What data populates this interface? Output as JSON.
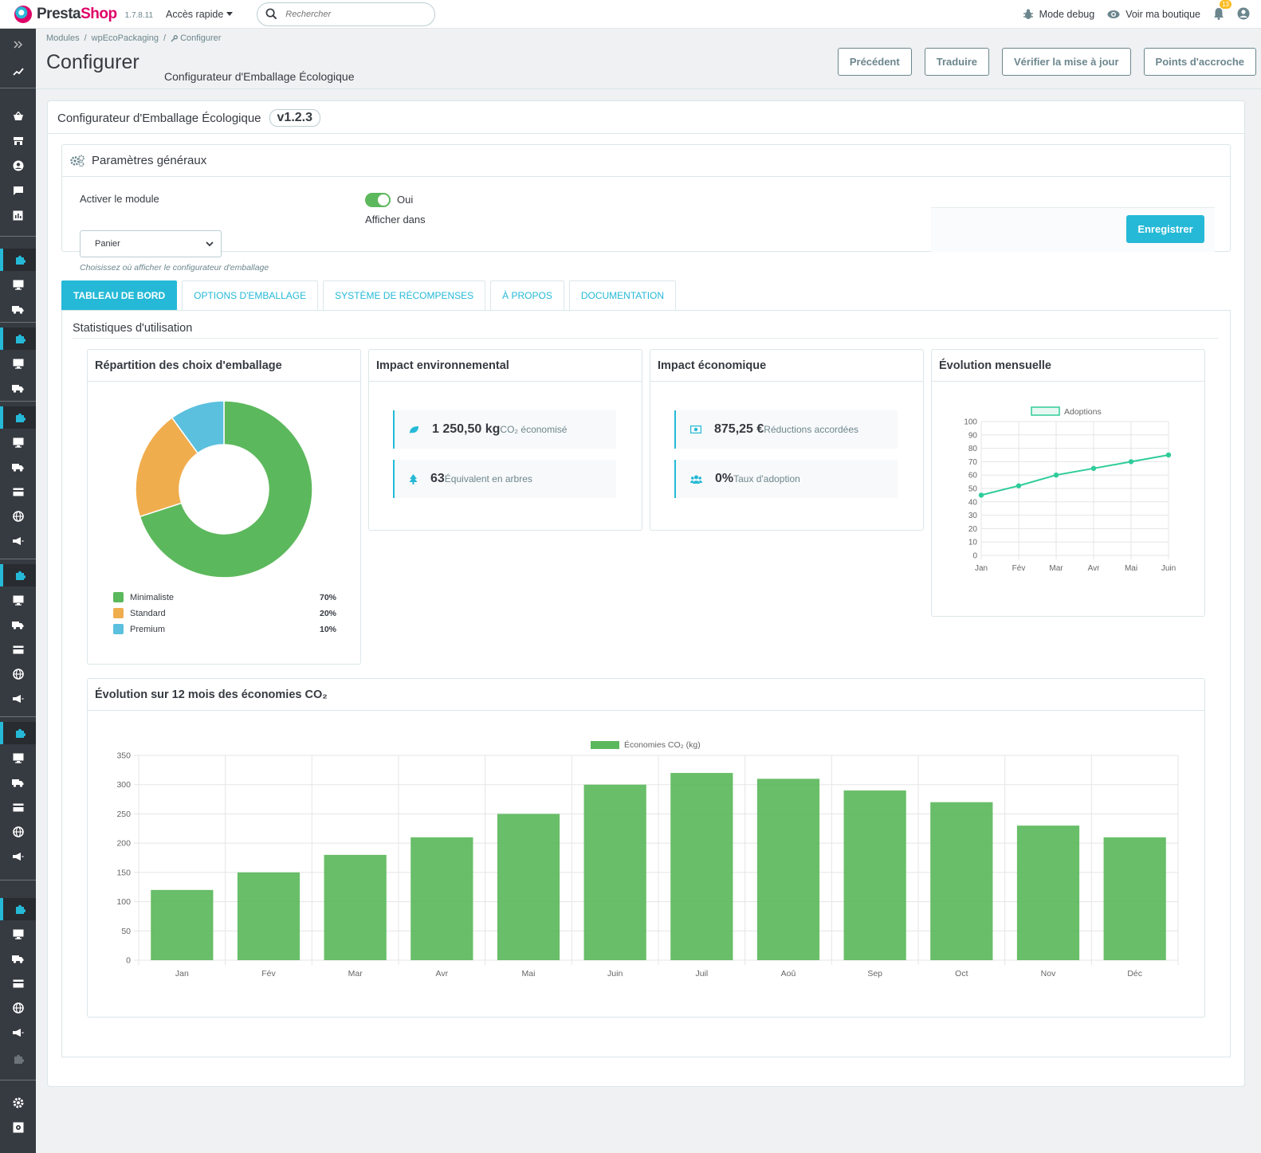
{
  "app": {
    "brand_presta": "Presta",
    "brand_shop": "Shop",
    "version": "1.7.8.11",
    "quick_access": "Accès rapide",
    "search_placeholder": "Rechercher",
    "debug_mode": "Mode debug",
    "view_shop": "Voir ma boutique",
    "notifications_count": "13"
  },
  "breadcrumb": [
    "Modules",
    "/",
    "wpEcoPackaging",
    "/",
    "Configurer"
  ],
  "page": {
    "title": "Configurer",
    "subtitle": "Configurateur d'Emballage Écologique"
  },
  "toolbar": {
    "back": "Précédent",
    "translate": "Traduire",
    "check_update": "Vérifier la mise à jour",
    "hooks": "Points d'accroche"
  },
  "module": {
    "name": "Configurateur d'Emballage Écologique",
    "version": "v1.2.3"
  },
  "settings": {
    "title": "Paramètres généraux",
    "activate_label": "Activer le module",
    "activate_value": "Oui",
    "display_in_label": "Afficher dans",
    "display_in_value": "Panier",
    "display_in_hint": "Choisissez où afficher le configurateur d'emballage",
    "save": "Enregistrer"
  },
  "tabs": [
    "TABLEAU DE BORD",
    "OPTIONS D'EMBALLAGE",
    "SYSTÈME DE RÉCOMPENSES",
    "À PROPOS",
    "DOCUMENTATION"
  ],
  "stats": {
    "title": "Statistiques d'utilisation",
    "packaging_card": "Répartition des choix d'emballage",
    "env_card": "Impact environnemental",
    "eco_card": "Impact économique",
    "monthly_card": "Évolution mensuelle",
    "co2_card": "Évolution sur 12 mois des économies CO₂",
    "env_metrics": [
      {
        "value": "1 250,50 kg",
        "label": "CO₂ économisé"
      },
      {
        "value": "63",
        "label": "Équivalent en arbres"
      }
    ],
    "eco_metrics": [
      {
        "value": "875,25 €",
        "label": "Réductions accordées"
      },
      {
        "value": "0%",
        "label": "Taux d'adoption"
      }
    ]
  },
  "chart_data": [
    {
      "type": "pie",
      "labels": [
        "Minimaliste",
        "Standard",
        "Premium"
      ],
      "values": [
        70,
        20,
        10
      ],
      "display": [
        "70%",
        "20%",
        "10%"
      ],
      "colors": [
        "#5cb85c",
        "#f0ad4e",
        "#5bc0de"
      ],
      "legend": "bottom"
    },
    {
      "type": "line",
      "categories": [
        "Jan",
        "Fév",
        "Mar",
        "Avr",
        "Mai",
        "Juin"
      ],
      "series": [
        {
          "name": "Adoptions",
          "values": [
            45,
            52,
            60,
            65,
            70,
            75
          ]
        }
      ],
      "ylim": [
        0,
        100
      ],
      "yticks": [
        0,
        10,
        20,
        30,
        40,
        50,
        60,
        70,
        80,
        90,
        100
      ],
      "color": "#2ecc9a",
      "grid": true,
      "legend": "top"
    },
    {
      "type": "bar",
      "categories": [
        "Jan",
        "Fév",
        "Mar",
        "Avr",
        "Mai",
        "Juin",
        "Juil",
        "Aoû",
        "Sep",
        "Oct",
        "Nov",
        "Déc"
      ],
      "series": [
        {
          "name": "Économies CO₂ (kg)",
          "values": [
            120,
            150,
            180,
            210,
            250,
            300,
            320,
            310,
            290,
            270,
            230,
            210
          ]
        }
      ],
      "ylim": [
        0,
        350
      ],
      "yticks": [
        0,
        50,
        100,
        150,
        200,
        250,
        300,
        350
      ],
      "color": "#5cb85c",
      "grid": true,
      "legend": "top"
    }
  ]
}
